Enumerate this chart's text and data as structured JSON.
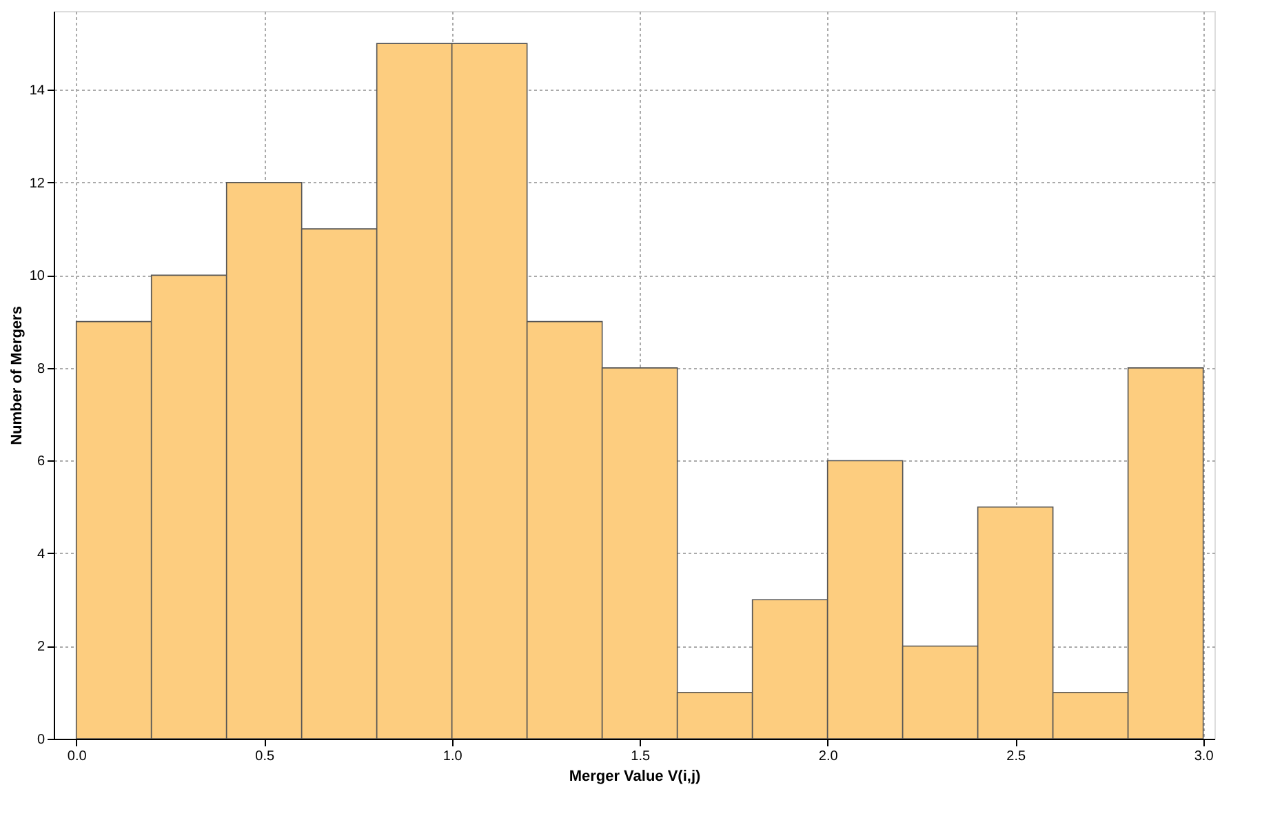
{
  "chart_data": {
    "type": "histogram",
    "xlabel": "Merger Value V(i,j)",
    "ylabel": "Number of Mergers",
    "bins": [
      0.0,
      0.2,
      0.4,
      0.6,
      0.8,
      1.0,
      1.2,
      1.4,
      1.6,
      1.8,
      2.0,
      2.2,
      2.4,
      2.6,
      2.8,
      3.0
    ],
    "values": [
      9,
      10,
      12,
      11,
      15,
      15,
      9,
      8,
      1,
      3,
      6,
      2,
      5,
      1,
      8
    ],
    "color": "#fdcd7f",
    "xlim": [
      -0.06,
      3.03
    ],
    "xticks": [
      {
        "value": 0,
        "label": "0.0"
      },
      {
        "value": 0.5,
        "label": "0.5"
      },
      {
        "value": 1,
        "label": "1.0"
      },
      {
        "value": 1.5,
        "label": "1.5"
      },
      {
        "value": 2,
        "label": "2.0"
      },
      {
        "value": 2.5,
        "label": "2.5"
      },
      {
        "value": 3,
        "label": "3.0"
      }
    ],
    "ylim": [
      0,
      15.7
    ],
    "yticks": [
      0,
      2,
      4,
      6,
      8,
      10,
      12,
      14
    ],
    "grid": true
  }
}
